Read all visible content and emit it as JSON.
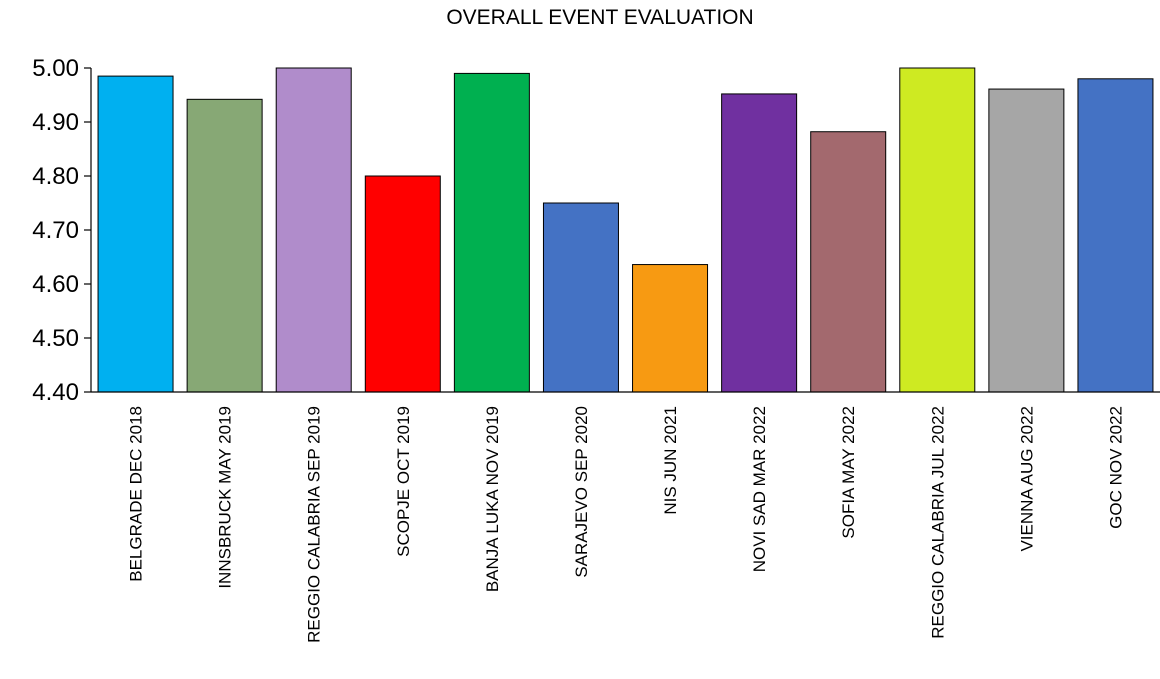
{
  "chart_data": {
    "type": "bar",
    "title": "OVERALL EVENT EVALUATION",
    "xlabel": "",
    "ylabel": "",
    "ylim": [
      4.4,
      5.0
    ],
    "yticks": [
      "4.40",
      "4.50",
      "4.60",
      "4.70",
      "4.80",
      "4.90",
      "5.00"
    ],
    "grid": false,
    "legend": "none",
    "categories": [
      "BELGRADE DEC 2018",
      "INNSBRUCK MAY 2019",
      "REGGIO CALABRIA SEP 2019",
      "SCOPJE OCT 2019",
      "BANJA LUKA NOV 2019",
      "SARAJEVO SEP 2020",
      "NIS JUN 2021",
      "NOVI SAD MAR 2022",
      "SOFIA MAY 2022",
      "REGGIO CALABRIA JUL 2022",
      "VIENNA AUG 2022",
      "GOC NOV 2022"
    ],
    "values": [
      4.985,
      4.942,
      5.0,
      4.8,
      4.99,
      4.75,
      4.636,
      4.952,
      4.882,
      5.0,
      4.961,
      4.98
    ],
    "colors": [
      "#00b0f0",
      "#87a875",
      "#b08ccb",
      "#ff0000",
      "#00b050",
      "#4472c4",
      "#f79a12",
      "#7030a0",
      "#a3696e",
      "#ceea22",
      "#a6a6a6",
      "#4472c4"
    ]
  }
}
